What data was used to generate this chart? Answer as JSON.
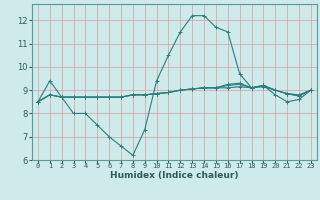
{
  "xlabel": "Humidex (Indice chaleur)",
  "bg_color": "#ceeaea",
  "grid_color": "#d4a0a0",
  "line_color": "#2d7d7d",
  "xlim": [
    -0.5,
    23.5
  ],
  "ylim": [
    6,
    12.7
  ],
  "yticks": [
    6,
    7,
    8,
    9,
    10,
    11,
    12
  ],
  "xticks": [
    0,
    1,
    2,
    3,
    4,
    5,
    6,
    7,
    8,
    9,
    10,
    11,
    12,
    13,
    14,
    15,
    16,
    17,
    18,
    19,
    20,
    21,
    22,
    23
  ],
  "series": [
    [
      8.5,
      9.4,
      8.7,
      8.0,
      8.0,
      7.5,
      7.0,
      6.6,
      6.2,
      7.3,
      9.4,
      10.5,
      11.5,
      12.2,
      12.2,
      11.7,
      11.5,
      9.7,
      9.1,
      9.2,
      8.8,
      8.5,
      8.6,
      9.0
    ],
    [
      8.5,
      8.8,
      8.7,
      8.7,
      8.7,
      8.7,
      8.7,
      8.7,
      8.8,
      8.8,
      8.85,
      8.9,
      9.0,
      9.05,
      9.1,
      9.1,
      9.1,
      9.15,
      9.1,
      9.15,
      9.0,
      8.85,
      8.8,
      9.0
    ],
    [
      8.5,
      8.8,
      8.7,
      8.7,
      8.7,
      8.7,
      8.7,
      8.7,
      8.8,
      8.8,
      8.85,
      8.9,
      9.0,
      9.05,
      9.1,
      9.1,
      9.2,
      9.25,
      9.1,
      9.2,
      9.0,
      8.85,
      8.75,
      9.0
    ],
    [
      8.5,
      8.8,
      8.7,
      8.7,
      8.7,
      8.7,
      8.7,
      8.7,
      8.8,
      8.8,
      8.85,
      8.9,
      9.0,
      9.05,
      9.1,
      9.1,
      9.25,
      9.3,
      9.1,
      9.2,
      9.0,
      8.85,
      8.75,
      9.0
    ]
  ],
  "marker": "+",
  "markersize": 3,
  "linewidth": 0.8,
  "xlabel_fontsize": 6.5,
  "tick_fontsize_x": 5,
  "tick_fontsize_y": 6
}
